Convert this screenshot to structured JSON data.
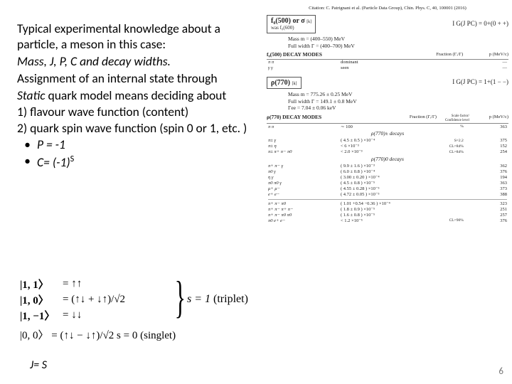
{
  "left": {
    "intro1": "Typical experimental knowledge about a particle, a meson in this case:",
    "intro2_i": "Mass, J, P, C and decay widths.",
    "intro3": "Assignment of an internal state through",
    "intro4a_i": "Static",
    "intro4b": " quark model means deciding about",
    "li1_num": "1)",
    "li1": "flavour wave function (content)",
    "li2_num": "2)",
    "li2": "quark spin wave function (spin 0 or 1, etc. )",
    "b1": "P = -1",
    "b2a": "C= (-1)",
    "b2sup": "S",
    "spin": {
      "r1_l": "|1, 1〉",
      "r1_r": "= ↑↑",
      "r2_l": "|1, 0〉",
      "r2_r": "= (↑↓ + ↓↑)/√2",
      "r3_l": "|1, −1〉",
      "r3_r": "= ↓↓",
      "triplet_s": "s = 1",
      "triplet_t": "  (triplet)",
      "r4": "|0, 0〉   =  (↑↓ − ↓↑)/√2      s = 0   (singlet)"
    },
    "js": "J= S"
  },
  "right": {
    "citation": "Citation: C. Patrignani et al. (Particle Data Group), Chin. Phys. C, 40, 100001 (2016)",
    "f0": {
      "box1": "f₀(500) or σ",
      "box2": "was f₀(600)",
      "note": "[k]",
      "ig": "I G(J PC) = 0+(0 + +)",
      "mass": "Mass m  =  (400–550) MeV",
      "width": "Full width Γ  =  (400–700) MeV"
    },
    "sect": {
      "c1": " DECAY MODES",
      "c2": "Fraction (Γᵢ/Γ)",
      "c3": "Confidence level",
      "c4": "p (MeV/c)"
    },
    "f0_decays": [
      {
        "mode": "π π",
        "frac": "dominant",
        "cl": "",
        "p": "—"
      },
      {
        "mode": "γ γ",
        "frac": "seen",
        "cl": "",
        "p": "—"
      }
    ],
    "rho": {
      "box": "ρ(770)",
      "note": "[k]",
      "ig": "I G(J PC) = 1+(1 − −)",
      "mass": "Mass m  = 775.26 ± 0.25 MeV",
      "width": "Full width Γ  = 149.1 ± 0.8 MeV",
      "gee": "Γee  = 7.04 ± 0.06 keV"
    },
    "rho_dom": [
      {
        "mode": "π π",
        "frac": "∼ 100",
        "cl": "%",
        "p": "363"
      }
    ],
    "rho_pm_title": "ρ(770)± decays",
    "rho_pm": [
      {
        "mode": "π± γ",
        "frac": "( 4.5 ± 0.5 ) ×10⁻⁴",
        "cl": "S=2.2",
        "p": "375"
      },
      {
        "mode": "π± η",
        "frac": "<  6            ×10⁻³",
        "cl": "CL=84%",
        "p": "152"
      },
      {
        "mode": "π± π+ π− π0",
        "frac": "<  2.0          ×10⁻³",
        "cl": "CL=84%",
        "p": "254"
      }
    ],
    "rho_0_title": "ρ(770)0 decays",
    "rho_0": [
      {
        "mode": "π+ π− γ",
        "frac": "( 9.9 ± 1.6 ) ×10⁻³",
        "cl": "",
        "p": "362"
      },
      {
        "mode": "π0 γ",
        "frac": "( 6.0 ± 0.8 ) ×10⁻⁴",
        "cl": "",
        "p": "376"
      },
      {
        "mode": "η γ",
        "frac": "( 3.00 ± 0.20 ) ×10⁻⁴",
        "cl": "",
        "p": "194"
      },
      {
        "mode": "π0 π0 γ",
        "frac": "( 4.5 ± 0.8 ) ×10⁻⁵",
        "cl": "",
        "p": "363"
      },
      {
        "mode": "μ+ μ−",
        "frac": "( 4.55 ± 0.28 ) ×10⁻⁵",
        "cl": "",
        "p": "373"
      },
      {
        "mode": "e+ e−",
        "frac": "( 4.72 ± 0.05 ) ×10⁻⁵",
        "cl": "",
        "p": "388"
      },
      "hr",
      {
        "mode": "π+ π− π0",
        "frac": "( 1.01 +0.54 −0.36 ) ×10⁻⁴",
        "cl": "",
        "p": "323"
      },
      {
        "mode": "π+ π− π+ π−",
        "frac": "( 1.8 ± 0.9 ) ×10⁻⁵",
        "cl": "",
        "p": "251"
      },
      {
        "mode": "π+ π− π0 π0",
        "frac": "( 1.6 ± 0.8 ) ×10⁻⁵",
        "cl": "",
        "p": "257"
      },
      {
        "mode": "π0 e+ e−",
        "frac": "<  1.2          ×10⁻⁵",
        "cl": "CL=90%",
        "p": "376"
      }
    ]
  },
  "page_num": "6"
}
